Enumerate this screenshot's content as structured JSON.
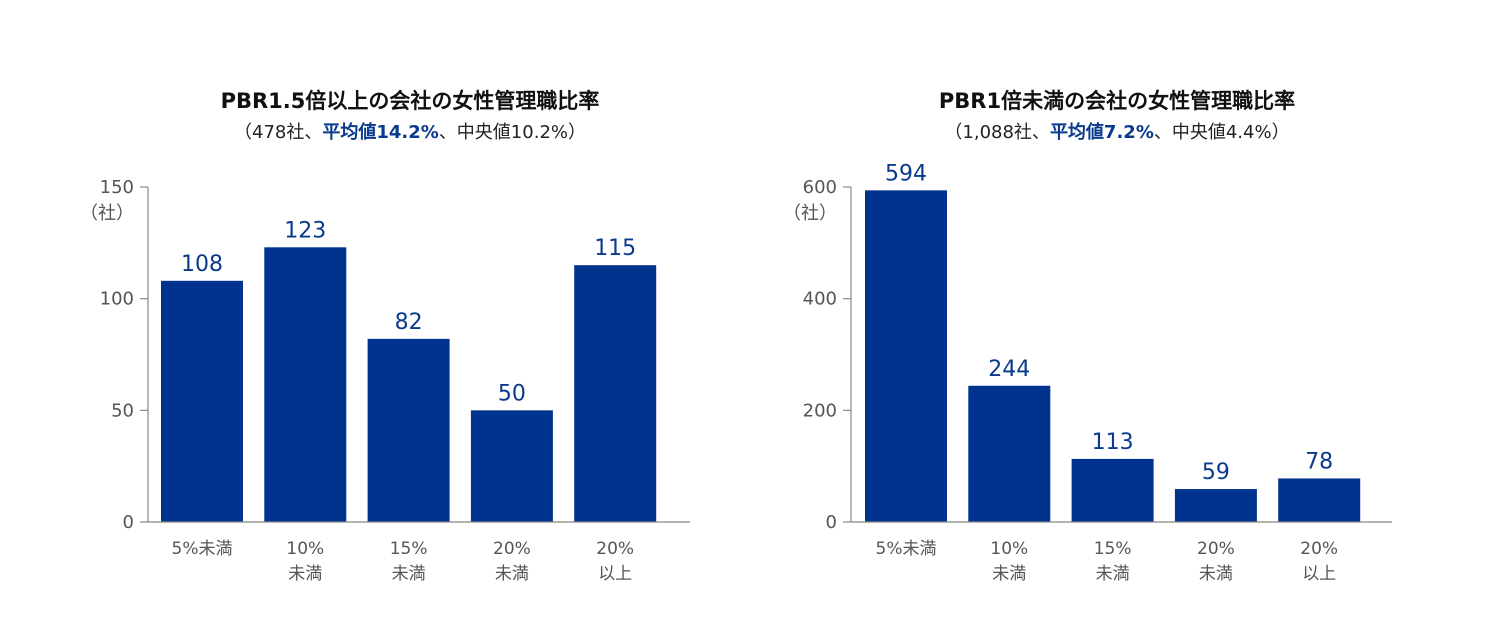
{
  "colors": {
    "bar": "#00338d",
    "label": "#0a3a8c",
    "axis": "#888888"
  },
  "chart_data": [
    {
      "type": "bar",
      "title": "PBR1.5倍以上の会社の女性管理職比率",
      "subtitle": {
        "pre": "（478社、",
        "highlight": "平均値14.2%",
        "post": "、中央値10.2%）"
      },
      "ylabel": "（社）",
      "ylim": [
        0,
        150
      ],
      "yticks": [
        0,
        50,
        100,
        150
      ],
      "categories": [
        [
          "5%未満"
        ],
        [
          "10%",
          "未満"
        ],
        [
          "15%",
          "未満"
        ],
        [
          "20%",
          "未満"
        ],
        [
          "20%",
          "以上"
        ]
      ],
      "values": [
        108,
        123,
        82,
        50,
        115
      ]
    },
    {
      "type": "bar",
      "title": "PBR1倍未満の会社の女性管理職比率",
      "subtitle": {
        "pre": "（1,088社、",
        "highlight": "平均値7.2%",
        "post": "、中央値4.4%）"
      },
      "ylabel": "（社）",
      "ylim": [
        0,
        600
      ],
      "yticks": [
        0,
        200,
        400,
        600
      ],
      "categories": [
        [
          "5%未満"
        ],
        [
          "10%",
          "未満"
        ],
        [
          "15%",
          "未満"
        ],
        [
          "20%",
          "未満"
        ],
        [
          "20%",
          "以上"
        ]
      ],
      "values": [
        594,
        244,
        113,
        59,
        78
      ]
    }
  ]
}
